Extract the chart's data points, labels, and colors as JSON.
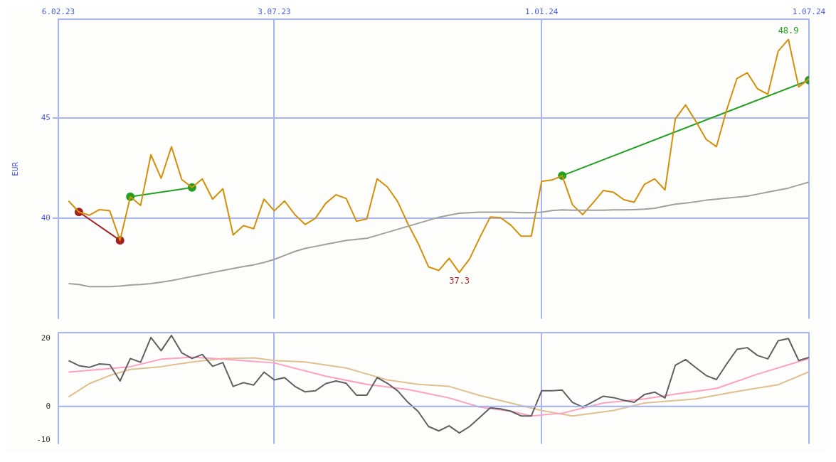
{
  "chart_data": [
    {
      "type": "line",
      "ylabel": "EUR",
      "grid": true,
      "marker": "none",
      "x": [
        "2023-02-13",
        "2023-02-20",
        "2023-02-27",
        "2023-03-06",
        "2023-03-13",
        "2023-03-20",
        "2023-03-27",
        "2023-04-03",
        "2023-04-10",
        "2023-04-17",
        "2023-04-24",
        "2023-05-01",
        "2023-05-08",
        "2023-05-15",
        "2023-05-22",
        "2023-05-29",
        "2023-06-05",
        "2023-06-12",
        "2023-06-19",
        "2023-06-26",
        "2023-07-03",
        "2023-07-10",
        "2023-07-17",
        "2023-07-24",
        "2023-07-31",
        "2023-08-07",
        "2023-08-14",
        "2023-08-21",
        "2023-08-28",
        "2023-09-04",
        "2023-09-11",
        "2023-09-18",
        "2023-09-25",
        "2023-10-02",
        "2023-10-09",
        "2023-10-16",
        "2023-10-23",
        "2023-10-30",
        "2023-11-06",
        "2023-11-13",
        "2023-11-20",
        "2023-11-27",
        "2023-12-04",
        "2023-12-11",
        "2023-12-18",
        "2023-12-25",
        "2024-01-01",
        "2024-01-08",
        "2024-01-15",
        "2024-01-22",
        "2024-01-29",
        "2024-02-05",
        "2024-02-12",
        "2024-02-19",
        "2024-02-26",
        "2024-03-04",
        "2024-03-11",
        "2024-03-18",
        "2024-03-25",
        "2024-04-01",
        "2024-04-08",
        "2024-04-15",
        "2024-04-22",
        "2024-04-29",
        "2024-05-06",
        "2024-05-13",
        "2024-05-20",
        "2024-05-27",
        "2024-06-03",
        "2024-06-10",
        "2024-06-17",
        "2024-06-24",
        "2024-07-01"
      ],
      "series": [
        {
          "color": "#a0a0a0",
          "values": [
            36.75,
            36.7,
            36.6,
            36.6,
            36.6,
            36.62,
            36.68,
            36.7,
            36.75,
            36.82,
            36.9,
            37.0,
            37.1,
            37.2,
            37.3,
            37.4,
            37.5,
            37.6,
            37.68,
            37.8,
            37.95,
            38.15,
            38.35,
            38.5,
            38.6,
            38.7,
            38.8,
            38.9,
            38.95,
            39.0,
            39.15,
            39.3,
            39.45,
            39.6,
            39.75,
            39.9,
            40.05,
            40.15,
            40.25,
            40.28,
            40.3,
            40.3,
            40.3,
            40.3,
            40.28,
            40.28,
            40.3,
            40.38,
            40.42,
            40.4,
            40.4,
            40.4,
            40.4,
            40.42,
            40.42,
            40.43,
            40.45,
            40.5,
            40.6,
            40.7,
            40.75,
            40.82,
            40.9,
            40.95,
            41.0,
            41.05,
            41.1,
            41.2,
            41.3,
            41.4,
            41.5,
            41.65,
            41.8
          ]
        },
        {
          "color": "#d4900a",
          "values": [
            40.86,
            40.31,
            40.15,
            40.43,
            40.37,
            38.9,
            41.07,
            40.64,
            43.16,
            41.99,
            43.56,
            41.93,
            41.53,
            41.96,
            40.95,
            41.47,
            39.17,
            39.63,
            39.48,
            40.95,
            40.37,
            40.86,
            40.18,
            39.69,
            40.0,
            40.74,
            41.17,
            40.98,
            39.85,
            39.97,
            41.96,
            41.56,
            40.83,
            39.72,
            38.74,
            37.58,
            37.4,
            38.01,
            37.3,
            37.98,
            39.05,
            40.06,
            40.03,
            39.66,
            39.11,
            39.11,
            41.84,
            41.9,
            42.12,
            40.67,
            40.18,
            40.77,
            41.38,
            41.29,
            40.92,
            40.8,
            41.69,
            41.96,
            41.41,
            44.94,
            45.64,
            44.82,
            43.93,
            43.56,
            45.4,
            46.96,
            47.24,
            46.44,
            46.17,
            48.31,
            48.9,
            46.53,
            46.93
          ]
        },
        {
          "color": "#a52020",
          "marker": "circle",
          "x": [
            "2023-02-20",
            "2023-03-20"
          ],
          "values": [
            40.31,
            38.9
          ]
        },
        {
          "color": "#22a022",
          "marker": "circle",
          "x": [
            "2023-03-27",
            "2023-05-08"
          ],
          "values": [
            41.07,
            41.53
          ]
        },
        {
          "color": "#22a022",
          "marker": "circle",
          "x": [
            "2024-01-15",
            "2024-07-01"
          ],
          "values": [
            42.12,
            46.87
          ]
        }
      ],
      "xlim": [
        "2023-02-06",
        "2024-07-01"
      ],
      "xticks": [
        {
          "value": "2023-02-06",
          "label": "6.02.23"
        },
        {
          "value": "2023-07-03",
          "label": "3.07.23"
        },
        {
          "value": "2024-01-01",
          "label": "1.01.24"
        },
        {
          "value": "2024-07-01",
          "label": "1.07.24"
        }
      ],
      "ylim": [
        35,
        49.9
      ],
      "yticks": [
        40,
        45
      ],
      "annotations": [
        {
          "text": "48.9",
          "x": "2024-06-17",
          "y": 48.9
        },
        {
          "text": "37.3",
          "x": "2023-11-06",
          "y": 37.3
        }
      ]
    },
    {
      "type": "line",
      "grid": "x",
      "tick_labels": "y",
      "marker": "none",
      "series": [
        {
          "color": "#606060",
          "x": [
            "2023-02-13",
            "2023-02-20",
            "2023-02-27",
            "2023-03-06",
            "2023-03-13",
            "2023-03-20",
            "2023-03-27",
            "2023-04-03",
            "2023-04-10",
            "2023-04-17",
            "2023-04-24",
            "2023-05-01",
            "2023-05-08",
            "2023-05-15",
            "2023-05-22",
            "2023-05-29",
            "2023-06-05",
            "2023-06-12",
            "2023-06-19",
            "2023-06-26",
            "2023-07-03",
            "2023-07-10",
            "2023-07-17",
            "2023-07-24",
            "2023-07-31",
            "2023-08-07",
            "2023-08-14",
            "2023-08-21",
            "2023-08-28",
            "2023-09-04",
            "2023-09-11",
            "2023-09-18",
            "2023-09-25",
            "2023-10-02",
            "2023-10-09",
            "2023-10-16",
            "2023-10-23",
            "2023-10-30",
            "2023-11-06",
            "2023-11-13",
            "2023-11-20",
            "2023-11-27",
            "2023-12-04",
            "2023-12-11",
            "2023-12-18",
            "2023-12-25",
            "2024-01-01",
            "2024-01-08",
            "2024-01-15",
            "2024-01-22",
            "2024-01-29",
            "2024-02-05",
            "2024-02-12",
            "2024-02-19",
            "2024-02-26",
            "2024-03-04",
            "2024-03-11",
            "2024-03-18",
            "2024-03-25",
            "2024-04-01",
            "2024-04-08",
            "2024-04-15",
            "2024-04-22",
            "2024-04-29",
            "2024-05-06",
            "2024-05-13",
            "2024-05-20",
            "2024-05-27",
            "2024-06-03",
            "2024-06-10",
            "2024-06-17",
            "2024-06-24",
            "2024-07-01"
          ],
          "values": [
            13.5,
            12.0,
            11.5,
            12.5,
            12.3,
            7.5,
            14.1,
            13.0,
            20.3,
            16.4,
            20.9,
            15.8,
            14.1,
            15.3,
            11.8,
            12.9,
            5.9,
            7.0,
            6.3,
            10.1,
            7.8,
            8.5,
            5.9,
            4.3,
            4.6,
            6.7,
            7.5,
            6.8,
            3.3,
            3.3,
            8.5,
            6.8,
            4.6,
            1.2,
            -1.5,
            -5.9,
            -7.2,
            -5.7,
            -7.8,
            -5.9,
            -3.2,
            -0.4,
            -0.7,
            -1.4,
            -2.8,
            -2.8,
            4.6,
            4.6,
            4.8,
            1.2,
            -0.2,
            1.4,
            3.0,
            2.6,
            1.8,
            1.2,
            3.5,
            4.2,
            2.5,
            12.1,
            13.8,
            11.4,
            9.1,
            7.9,
            12.5,
            16.8,
            17.3,
            15.0,
            14.0,
            19.3,
            20.0,
            13.5,
            14.4
          ]
        },
        {
          "color": "#ffa0c0",
          "x": [
            "2023-02-13",
            "2023-03-27",
            "2023-04-17",
            "2023-05-08",
            "2023-05-29",
            "2023-07-03",
            "2023-08-07",
            "2023-09-04",
            "2023-10-02",
            "2023-10-30",
            "2023-11-20",
            "2023-12-11",
            "2023-12-25",
            "2024-01-15",
            "2024-02-12",
            "2024-03-11",
            "2024-04-01",
            "2024-04-29",
            "2024-05-27",
            "2024-07-01"
          ],
          "values": [
            10.1,
            11.7,
            13.9,
            14.5,
            13.9,
            12.8,
            8.9,
            6.5,
            5.0,
            2.5,
            -0.2,
            -1.4,
            -2.8,
            -2.0,
            1.0,
            2.2,
            3.6,
            5.3,
            9.5,
            14.1
          ]
        },
        {
          "color": "#e0c090",
          "x": [
            "2023-02-13",
            "2023-02-27",
            "2023-03-13",
            "2023-03-27",
            "2023-04-17",
            "2023-05-08",
            "2023-05-29",
            "2023-06-19",
            "2023-07-03",
            "2023-07-24",
            "2023-08-21",
            "2023-09-18",
            "2023-10-09",
            "2023-10-30",
            "2023-11-20",
            "2023-12-11",
            "2024-01-01",
            "2024-01-22",
            "2024-02-19",
            "2024-03-11",
            "2024-04-15",
            "2024-05-13",
            "2024-06-10",
            "2024-07-01"
          ],
          "values": [
            2.8,
            6.7,
            9.1,
            10.9,
            11.7,
            13.1,
            14.1,
            14.3,
            13.5,
            13.1,
            11.3,
            7.8,
            6.5,
            5.9,
            3.2,
            1.0,
            -1.2,
            -2.8,
            -1.2,
            1.0,
            2.2,
            4.4,
            6.4,
            10.2
          ]
        }
      ],
      "xlim": [
        "2023-02-06",
        "2024-07-01"
      ],
      "xticks": [
        {
          "value": "2023-02-06",
          "label": null
        },
        {
          "value": "2023-07-03",
          "label": null
        },
        {
          "value": "2024-01-01",
          "label": null
        },
        {
          "value": "2024-07-01",
          "label": null
        }
      ],
      "ylim": [
        -11,
        21.8
      ],
      "yticks": [
        -10,
        0,
        20
      ],
      "ref_lines": [
        {
          "axis": "y",
          "value": 0,
          "color": "#a0b0f0"
        }
      ]
    }
  ]
}
